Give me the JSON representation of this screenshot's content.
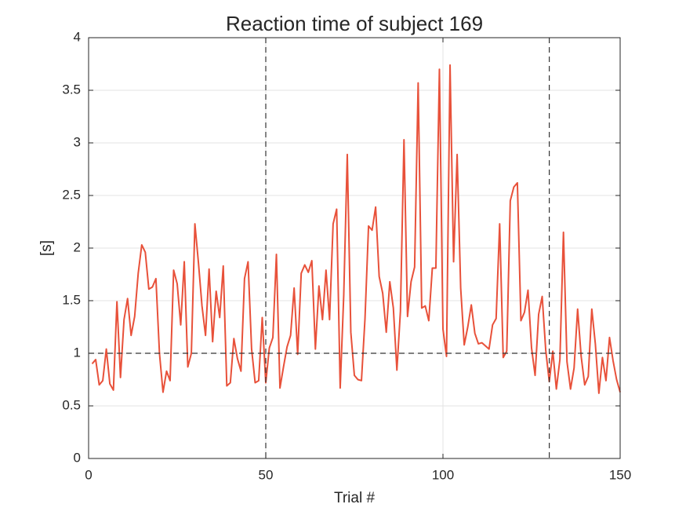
{
  "chart_data": {
    "type": "line",
    "title": "Reaction time of subject 169",
    "xlabel": "Trial #",
    "ylabel": "[s]",
    "x": [
      1,
      2,
      3,
      4,
      5,
      6,
      7,
      8,
      9,
      10,
      11,
      12,
      13,
      14,
      15,
      16,
      17,
      18,
      19,
      20,
      21,
      22,
      23,
      24,
      25,
      26,
      27,
      28,
      29,
      30,
      31,
      32,
      33,
      34,
      35,
      36,
      37,
      38,
      39,
      40,
      41,
      42,
      43,
      44,
      45,
      46,
      47,
      48,
      49,
      50,
      51,
      52,
      53,
      54,
      55,
      56,
      57,
      58,
      59,
      60,
      61,
      62,
      63,
      64,
      65,
      66,
      67,
      68,
      69,
      70,
      71,
      72,
      73,
      74,
      75,
      76,
      77,
      78,
      79,
      80,
      81,
      82,
      83,
      84,
      85,
      86,
      87,
      88,
      89,
      90,
      91,
      92,
      93,
      94,
      95,
      96,
      97,
      98,
      99,
      100,
      101,
      102,
      103,
      104,
      105,
      106,
      107,
      108,
      109,
      110,
      111,
      112,
      113,
      114,
      115,
      116,
      117,
      118,
      119,
      120,
      121,
      122,
      123,
      124,
      125,
      126,
      127,
      128,
      129,
      130,
      131,
      132,
      133,
      134,
      135,
      136,
      137,
      138,
      139,
      140,
      141,
      142,
      143,
      144,
      145,
      146,
      147,
      148,
      149,
      150
    ],
    "series": [
      {
        "color": "#e8513a",
        "values": [
          0.9,
          0.94,
          0.7,
          0.74,
          1.04,
          0.71,
          0.65,
          1.49,
          0.77,
          1.32,
          1.52,
          1.17,
          1.35,
          1.76,
          2.03,
          1.96,
          1.61,
          1.63,
          1.71,
          1.0,
          0.63,
          0.83,
          0.74,
          1.79,
          1.66,
          1.27,
          1.87,
          0.87,
          1.0,
          2.23,
          1.86,
          1.45,
          1.17,
          1.8,
          1.11,
          1.59,
          1.34,
          1.83,
          0.69,
          0.72,
          1.14,
          0.95,
          0.83,
          1.71,
          1.87,
          1.04,
          0.72,
          0.74,
          1.34,
          0.72,
          1.05,
          1.15,
          1.94,
          0.67,
          0.87,
          1.06,
          1.17,
          1.62,
          0.99,
          1.76,
          1.84,
          1.77,
          1.88,
          1.04,
          1.64,
          1.32,
          1.79,
          1.32,
          2.23,
          2.37,
          0.67,
          1.55,
          2.89,
          1.2,
          0.79,
          0.75,
          0.74,
          1.33,
          2.21,
          2.17,
          2.39,
          1.73,
          1.57,
          1.2,
          1.68,
          1.43,
          0.84,
          1.4,
          3.03,
          1.35,
          1.68,
          1.82,
          3.57,
          1.43,
          1.45,
          1.31,
          1.81,
          1.81,
          3.7,
          1.23,
          0.97,
          3.74,
          1.87,
          2.89,
          1.62,
          1.08,
          1.25,
          1.46,
          1.19,
          1.09,
          1.1,
          1.07,
          1.04,
          1.27,
          1.33,
          2.23,
          0.96,
          1.02,
          2.45,
          2.58,
          2.62,
          1.31,
          1.39,
          1.6,
          1.05,
          0.79,
          1.37,
          1.54,
          1.03,
          0.73,
          1.02,
          0.66,
          0.94,
          2.15,
          0.92,
          0.66,
          0.86,
          1.42,
          0.97,
          0.7,
          0.78,
          1.42,
          1.09,
          0.62,
          0.96,
          0.74,
          1.15,
          0.93,
          0.75,
          0.63
        ]
      }
    ],
    "xlim": [
      0,
      150
    ],
    "xticks": [
      0,
      50,
      100,
      150
    ],
    "ylim": [
      0,
      4
    ],
    "yticks": [
      0,
      0.5,
      1,
      1.5,
      2,
      2.5,
      3,
      3.5,
      4
    ],
    "grid": true,
    "vlines": [
      50,
      130
    ],
    "hlines": [
      1
    ]
  }
}
